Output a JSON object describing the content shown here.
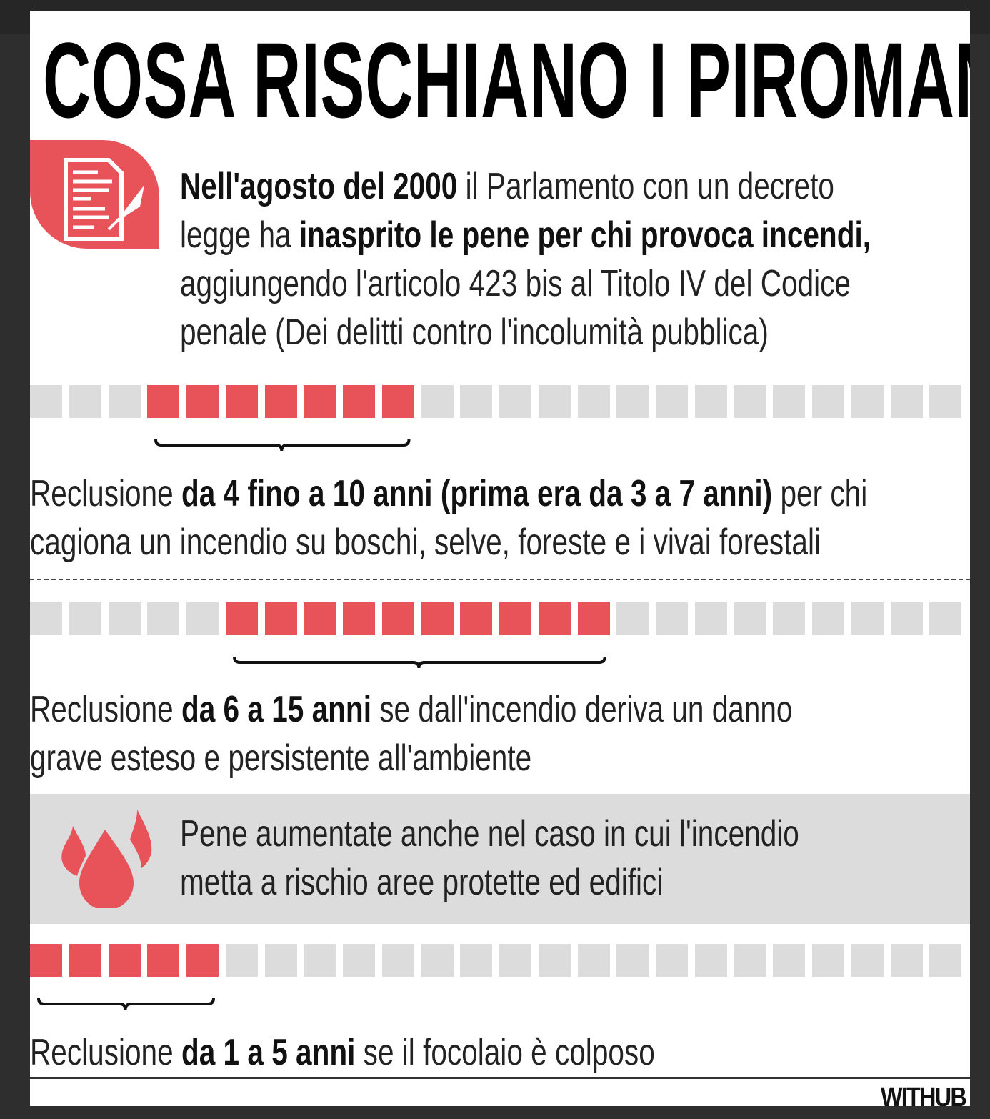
{
  "title": "COSA RISCHIANO I PIROMANI",
  "intro": {
    "line1_bold": "Nell'agosto del 2000",
    "line1_rest": " il Parlamento con un decreto",
    "line2_pre": "legge ha ",
    "line2_bold": "inasprito le pene per chi provoca incendi,",
    "line3": "aggiungendo l'articolo 423 bis al Titolo IV del Codice",
    "line4": "penale (Dei delitti contro l'incolumità pubblica)"
  },
  "scale_total": 24,
  "colors": {
    "accent": "#e8535a",
    "inactive": "#dcdcdc"
  },
  "penalties": [
    {
      "from": 4,
      "to": 10,
      "pre": "Reclusione ",
      "bold": "da 4 fino a 10 anni (prima era da 3 a 7 anni)",
      "post": " per chi",
      "line2": "cagiona un incendio su boschi, selve, foreste e i vivai forestali"
    },
    {
      "from": 6,
      "to": 15,
      "pre": "Reclusione ",
      "bold": "da 6 a 15 anni",
      "post": " se dall'incendio deriva un danno",
      "line2": "grave esteso e persistente all'ambiente"
    },
    {
      "from": 1,
      "to": 5,
      "pre": "Reclusione ",
      "bold": "da 1 a 5 anni",
      "post": " se il focolaio è colposo",
      "line2": ""
    }
  ],
  "note": {
    "line1": "Pene aumentate anche nel caso in cui l'incendio",
    "line2": "metta a rischio aree protette ed edifici",
    "icon": "fire-icon"
  },
  "logo": "WITHUB",
  "doc_icon": "document-pen-icon"
}
